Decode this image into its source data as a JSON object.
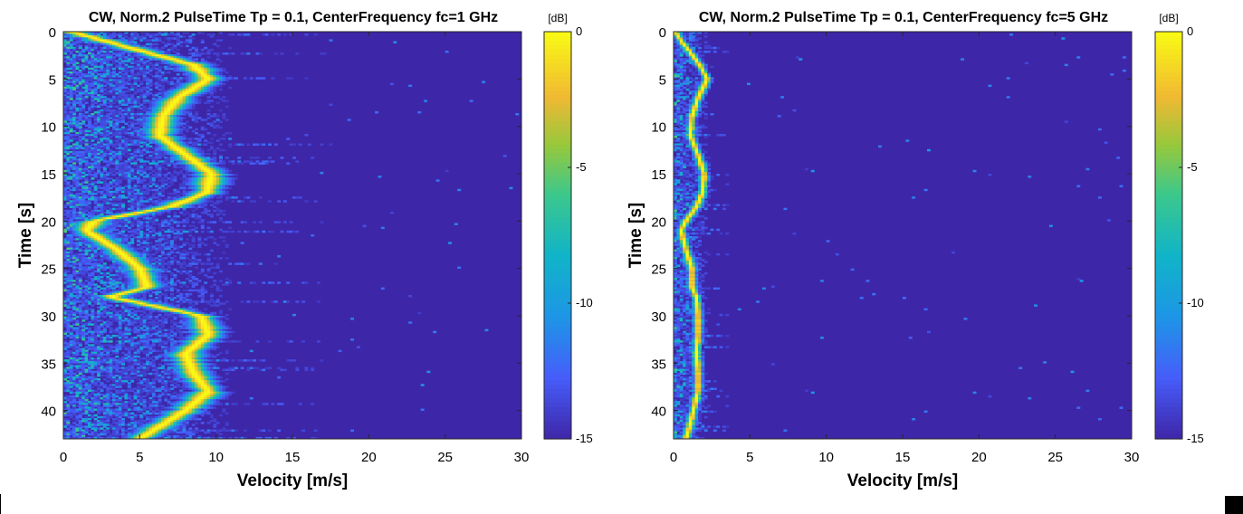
{
  "chart_data": [
    {
      "type": "heatmap",
      "title": "CW, Norm.2 PulseTime Tp = 0.1, CenterFrequency fc=1 GHz",
      "xlabel": "Velocity [m/s]",
      "ylabel": "Time [s]",
      "xlim": [
        0,
        30
      ],
      "ylim": [
        0,
        43
      ],
      "y_reversed": true,
      "x_ticks": [
        0,
        5,
        10,
        15,
        20,
        25,
        30
      ],
      "y_ticks": [
        0,
        5,
        10,
        15,
        20,
        25,
        30,
        35,
        40
      ],
      "colorbar": {
        "label": "[dB]",
        "range": [
          -15,
          0
        ],
        "ticks": [
          0,
          -5,
          -10,
          -15
        ],
        "colormap": "parula"
      },
      "background_color": "#3e26a8",
      "ridge": {
        "t": [
          0,
          2,
          3.5,
          5,
          7,
          9,
          11,
          13,
          15,
          17,
          18.5,
          20,
          21,
          23,
          25,
          27,
          28,
          30,
          32,
          34,
          36,
          38,
          40,
          42,
          43
        ],
        "v": [
          0.5,
          5,
          8.5,
          9.5,
          7.5,
          6.5,
          6.3,
          8,
          9.7,
          9.4,
          7,
          2,
          1.5,
          3.5,
          5,
          5.5,
          3,
          9,
          9.5,
          8,
          8.5,
          9.5,
          8,
          6,
          5
        ]
      },
      "ridge_width": 0.8,
      "noise_extent": 12
    },
    {
      "type": "heatmap",
      "title": "CW, Norm.2 PulseTime Tp = 0.1, CenterFrequency fc=5 GHz",
      "xlabel": "Velocity [m/s]",
      "ylabel": "Time [s]",
      "xlim": [
        0,
        30
      ],
      "ylim": [
        0,
        43
      ],
      "y_reversed": true,
      "x_ticks": [
        0,
        5,
        10,
        15,
        20,
        25,
        30
      ],
      "y_ticks": [
        0,
        5,
        10,
        15,
        20,
        25,
        30,
        35,
        40
      ],
      "colorbar": {
        "label": "[dB]",
        "range": [
          -15,
          0
        ],
        "ticks": [
          0,
          -5,
          -10,
          -15
        ],
        "colormap": "parula"
      },
      "background_color": "#3e26a8",
      "ridge": {
        "t": [
          0,
          1,
          2,
          3.5,
          5,
          7,
          9,
          11,
          13,
          15,
          17,
          18.5,
          20,
          21,
          23,
          25,
          27,
          28,
          30,
          32,
          34,
          36,
          38,
          40,
          42,
          43
        ],
        "v": [
          0.1,
          0.5,
          1,
          1.7,
          2.2,
          1.6,
          1.2,
          1.1,
          1.6,
          2,
          1.9,
          1.5,
          0.8,
          0.5,
          0.8,
          1.2,
          1.2,
          1.5,
          1.6,
          1.6,
          1.5,
          1.6,
          1.6,
          1.3,
          1,
          0.8
        ]
      },
      "ridge_width": 0.25,
      "noise_extent": 2.5
    }
  ]
}
